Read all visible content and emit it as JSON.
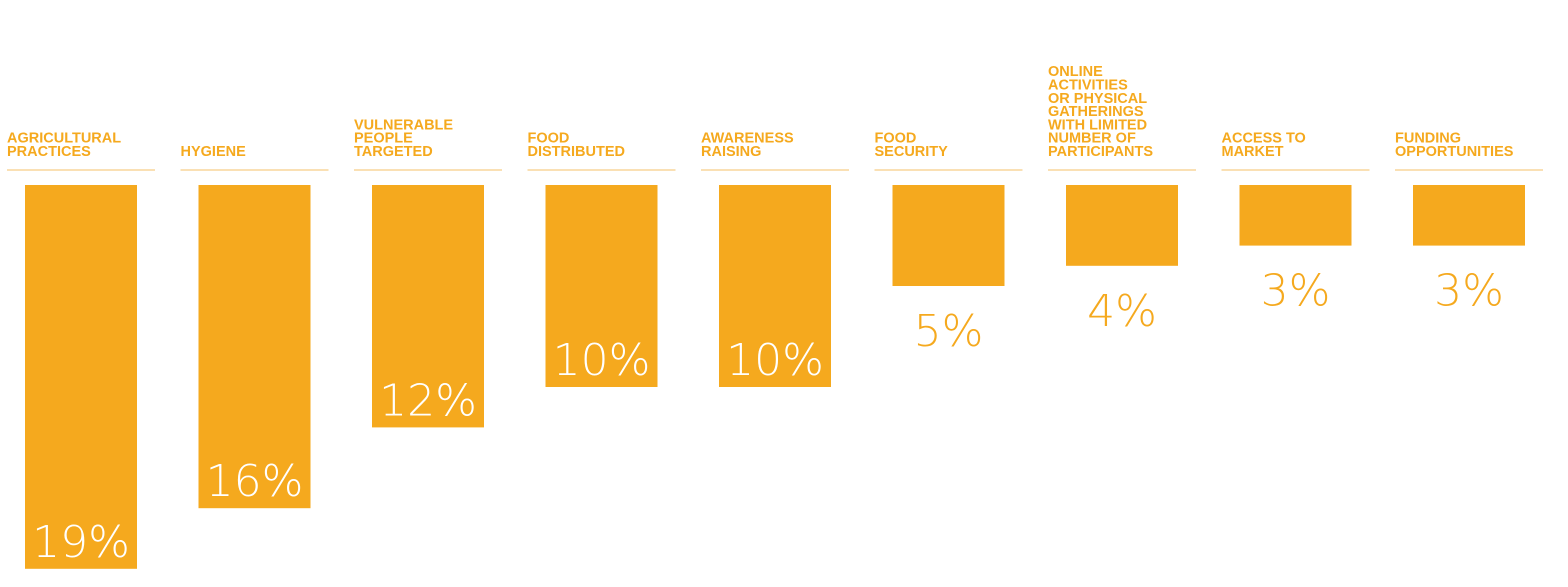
{
  "chart_data": {
    "type": "bar",
    "categories": [
      [
        "AGRICULTURAL",
        "PRACTICES"
      ],
      [
        "HYGIENE"
      ],
      [
        "VULNERABLE",
        "PEOPLE",
        "TARGETED"
      ],
      [
        "FOOD",
        "DISTRIBUTED"
      ],
      [
        "AWARENESS",
        "RAISING"
      ],
      [
        "FOOD",
        "SECURITY"
      ],
      [
        "ONLINE",
        "ACTIVITIES",
        "OR PHYSICAL",
        "GATHERINGS",
        "WITH LIMITED",
        "NUMBER OF",
        "PARTICIPANTS"
      ],
      [
        "ACCESS TO",
        "MARKET"
      ],
      [
        "FUNDING",
        "OPPORTUNITIES"
      ]
    ],
    "values": [
      19,
      16,
      12,
      10,
      10,
      5,
      4,
      3,
      3
    ],
    "value_labels": [
      "19%",
      "16%",
      "12%",
      "10%",
      "10%",
      "5%",
      "4%",
      "3%",
      "3%"
    ],
    "unit": "%",
    "title": "",
    "xlabel": "",
    "ylabel": "",
    "orientation": "downward",
    "bar_color": "#F5A91E",
    "label_color": "#F5A91E",
    "value_label_inside_color": "#FFFFFF",
    "divider_color": "#F5C16A"
  }
}
